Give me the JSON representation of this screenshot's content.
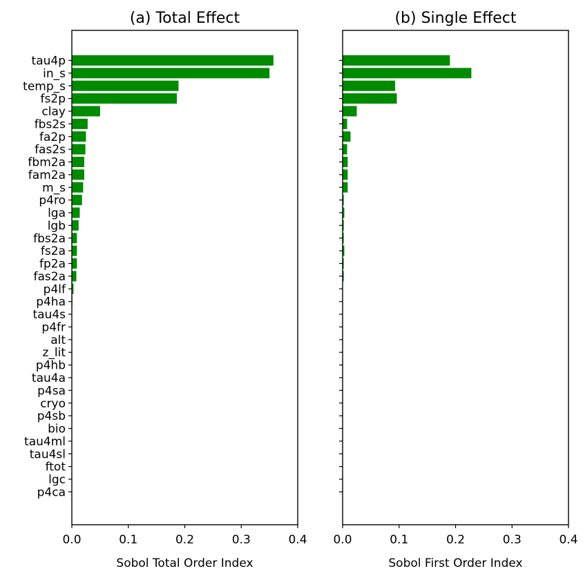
{
  "chart_data": [
    {
      "type": "bar",
      "orientation": "horizontal",
      "title": "(a) Total Effect",
      "xlabel": "Sobol Total Order Index",
      "xlim": [
        0,
        0.4
      ],
      "xticks": [
        "0.0",
        "0.1",
        "0.2",
        "0.3",
        "0.4"
      ],
      "bar_color": "#008a00",
      "show_category_labels": true,
      "categories": [
        "tau4p",
        "in_s",
        "temp_s",
        "fs2p",
        "clay",
        "fbs2s",
        "fa2p",
        "fas2s",
        "fbm2a",
        "fam2a",
        "m_s",
        "p4ro",
        "lga",
        "lgb",
        "fbs2a",
        "fs2a",
        "fp2a",
        "fas2a",
        "p4lf",
        "p4ha",
        "tau4s",
        "p4fr",
        "alt",
        "z_lit",
        "p4hb",
        "tau4a",
        "p4sa",
        "cryo",
        "p4sb",
        "bio",
        "tau4ml",
        "tau4sl",
        "ftot",
        "lgc",
        "p4ca"
      ],
      "values": [
        0.357,
        0.35,
        0.189,
        0.186,
        0.05,
        0.028,
        0.025,
        0.024,
        0.022,
        0.022,
        0.02,
        0.018,
        0.014,
        0.012,
        0.009,
        0.009,
        0.009,
        0.008,
        0.003,
        0.001,
        0.0,
        0.0,
        0.0,
        0.0,
        0.0,
        0.0,
        0.0,
        0.0,
        0.0,
        0.0,
        0.0,
        0.0,
        0.0,
        0.0,
        0.0
      ]
    },
    {
      "type": "bar",
      "orientation": "horizontal",
      "title": "(b) Single Effect",
      "xlabel": "Sobol First Order Index",
      "xlim": [
        0,
        0.4
      ],
      "xticks": [
        "0.0",
        "0.1",
        "0.2",
        "0.3",
        "0.4"
      ],
      "bar_color": "#008a00",
      "show_category_labels": false,
      "categories": [
        "tau4p",
        "in_s",
        "temp_s",
        "fs2p",
        "clay",
        "fbs2s",
        "fa2p",
        "fas2s",
        "fbm2a",
        "fam2a",
        "m_s",
        "p4ro",
        "lga",
        "lgb",
        "fbs2a",
        "fs2a",
        "fp2a",
        "fas2a",
        "p4lf",
        "p4ha",
        "tau4s",
        "p4fr",
        "alt",
        "z_lit",
        "p4hb",
        "tau4a",
        "p4sa",
        "cryo",
        "p4sb",
        "bio",
        "tau4ml",
        "tau4sl",
        "ftot",
        "lgc",
        "p4ca"
      ],
      "values": [
        0.19,
        0.228,
        0.093,
        0.096,
        0.025,
        0.008,
        0.014,
        0.008,
        0.009,
        0.009,
        0.009,
        0.002,
        0.003,
        0.002,
        0.002,
        0.003,
        0.002,
        0.002,
        0.0,
        0.0,
        0.0,
        0.0,
        0.0,
        0.0,
        0.0,
        0.0,
        0.0,
        0.0,
        0.0,
        0.0,
        0.0,
        0.0,
        0.0,
        0.0,
        0.0
      ]
    }
  ]
}
